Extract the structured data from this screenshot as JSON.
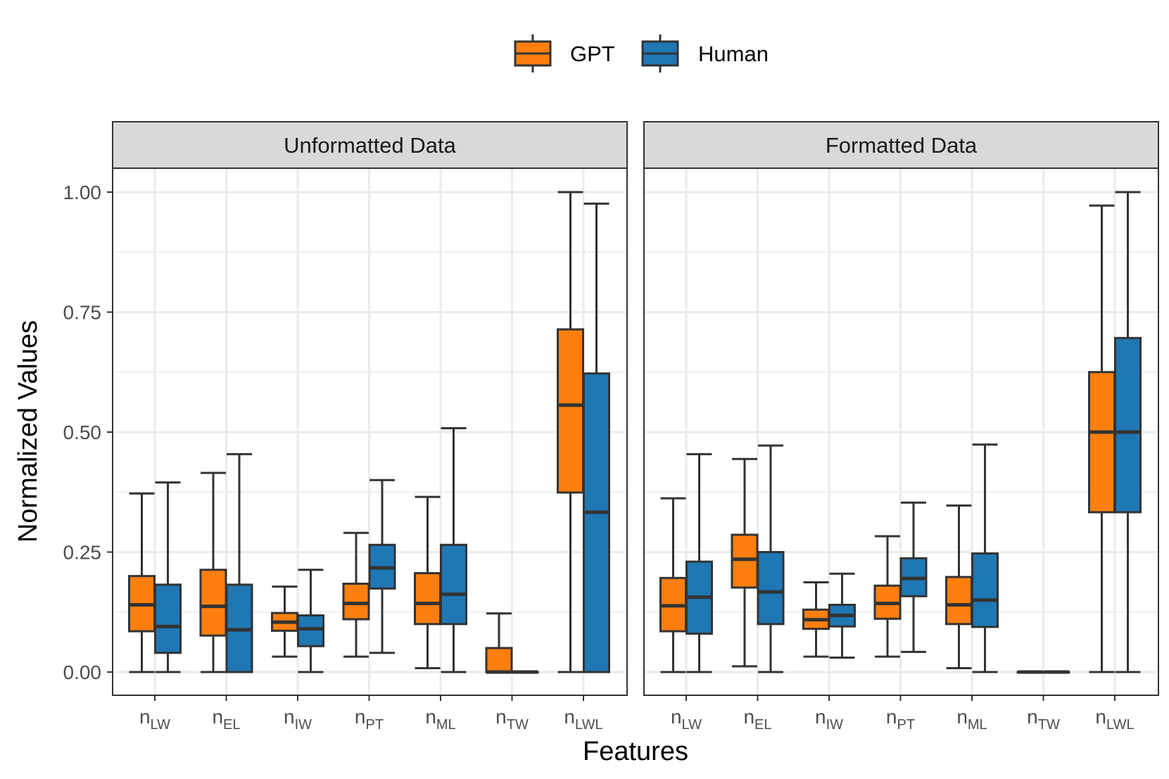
{
  "chart_data": {
    "type": "boxplot",
    "xlabel": "Features",
    "ylabel": "Normalized Values",
    "ylim": [
      -0.05,
      1.05
    ],
    "yticks": [
      0.0,
      0.25,
      0.5,
      0.75,
      1.0
    ],
    "ytick_labels": [
      "0.00",
      "0.25",
      "0.50",
      "0.75",
      "1.00"
    ],
    "grid": true,
    "legend_position": "top",
    "categories": [
      {
        "base": "n",
        "sub": "LW"
      },
      {
        "base": "n",
        "sub": "EL"
      },
      {
        "base": "n",
        "sub": "IW"
      },
      {
        "base": "n",
        "sub": "PT"
      },
      {
        "base": "n",
        "sub": "ML"
      },
      {
        "base": "n",
        "sub": "TW"
      },
      {
        "base": "n",
        "sub": "LWL"
      }
    ],
    "series": [
      {
        "name": "GPT",
        "color": "#FF7F0E"
      },
      {
        "name": "Human",
        "color": "#1F77B4"
      }
    ],
    "panels": [
      {
        "title": "Unformatted Data",
        "boxes": {
          "GPT": [
            {
              "min": 0.0,
              "q1": 0.085,
              "median": 0.14,
              "q3": 0.2,
              "max": 0.372
            },
            {
              "min": 0.0,
              "q1": 0.076,
              "median": 0.137,
              "q3": 0.213,
              "max": 0.415
            },
            {
              "min": 0.032,
              "q1": 0.086,
              "median": 0.104,
              "q3": 0.123,
              "max": 0.178
            },
            {
              "min": 0.032,
              "q1": 0.11,
              "median": 0.143,
              "q3": 0.184,
              "max": 0.29
            },
            {
              "min": 0.008,
              "q1": 0.1,
              "median": 0.143,
              "q3": 0.206,
              "max": 0.365
            },
            {
              "min": 0.0,
              "q1": 0.0,
              "median": 0.0,
              "q3": 0.05,
              "max": 0.122
            },
            {
              "min": 0.0,
              "q1": 0.374,
              "median": 0.556,
              "q3": 0.714,
              "max": 1.0
            }
          ],
          "Human": [
            {
              "min": 0.0,
              "q1": 0.04,
              "median": 0.095,
              "q3": 0.182,
              "max": 0.395
            },
            {
              "min": 0.0,
              "q1": 0.0,
              "median": 0.088,
              "q3": 0.182,
              "max": 0.454
            },
            {
              "min": 0.0,
              "q1": 0.054,
              "median": 0.09,
              "q3": 0.118,
              "max": 0.213
            },
            {
              "min": 0.04,
              "q1": 0.174,
              "median": 0.217,
              "q3": 0.265,
              "max": 0.4
            },
            {
              "min": 0.0,
              "q1": 0.1,
              "median": 0.162,
              "q3": 0.265,
              "max": 0.508
            },
            {
              "min": 0.0,
              "q1": 0.0,
              "median": 0.0,
              "q3": 0.0,
              "max": 0.0
            },
            {
              "min": 0.0,
              "q1": 0.0,
              "median": 0.333,
              "q3": 0.622,
              "max": 0.976
            }
          ]
        }
      },
      {
        "title": "Formatted Data",
        "boxes": {
          "GPT": [
            {
              "min": 0.0,
              "q1": 0.085,
              "median": 0.138,
              "q3": 0.196,
              "max": 0.362
            },
            {
              "min": 0.012,
              "q1": 0.176,
              "median": 0.235,
              "q3": 0.286,
              "max": 0.444
            },
            {
              "min": 0.032,
              "q1": 0.09,
              "median": 0.109,
              "q3": 0.13,
              "max": 0.187
            },
            {
              "min": 0.032,
              "q1": 0.111,
              "median": 0.143,
              "q3": 0.18,
              "max": 0.283
            },
            {
              "min": 0.008,
              "q1": 0.1,
              "median": 0.14,
              "q3": 0.198,
              "max": 0.347
            },
            {
              "min": 0.0,
              "q1": 0.0,
              "median": 0.0,
              "q3": 0.0,
              "max": 0.0
            },
            {
              "min": 0.0,
              "q1": 0.333,
              "median": 0.5,
              "q3": 0.625,
              "max": 0.972
            }
          ],
          "Human": [
            {
              "min": 0.0,
              "q1": 0.08,
              "median": 0.156,
              "q3": 0.23,
              "max": 0.454
            },
            {
              "min": 0.0,
              "q1": 0.1,
              "median": 0.167,
              "q3": 0.25,
              "max": 0.472
            },
            {
              "min": 0.03,
              "q1": 0.095,
              "median": 0.118,
              "q3": 0.14,
              "max": 0.205
            },
            {
              "min": 0.042,
              "q1": 0.158,
              "median": 0.195,
              "q3": 0.237,
              "max": 0.353
            },
            {
              "min": 0.0,
              "q1": 0.094,
              "median": 0.15,
              "q3": 0.247,
              "max": 0.474
            },
            {
              "min": 0.0,
              "q1": 0.0,
              "median": 0.0,
              "q3": 0.0,
              "max": 0.0
            },
            {
              "min": 0.0,
              "q1": 0.333,
              "median": 0.5,
              "q3": 0.696,
              "max": 1.0
            }
          ]
        }
      }
    ]
  }
}
